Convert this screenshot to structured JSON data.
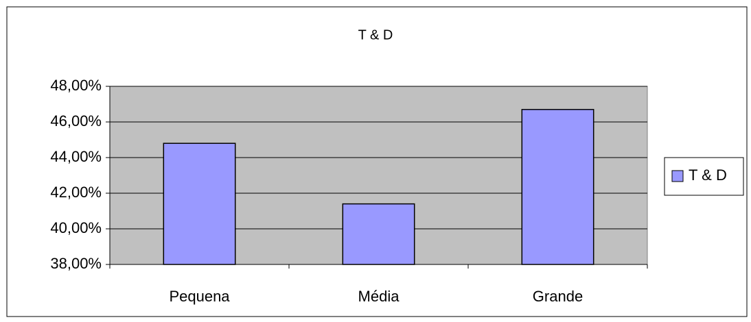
{
  "chart_data": {
    "type": "bar",
    "title": "T & D",
    "categories": [
      "Pequena",
      "Média",
      "Grande"
    ],
    "series": [
      {
        "name": "T & D",
        "color": "#9999ff",
        "values": [
          44.8,
          41.4,
          46.7
        ]
      }
    ],
    "ylim": [
      38,
      48
    ],
    "yticks": [
      {
        "value": 38,
        "label": "38,00%"
      },
      {
        "value": 40,
        "label": "40,00%"
      },
      {
        "value": 42,
        "label": "42,00%"
      },
      {
        "value": 44,
        "label": "44,00%"
      },
      {
        "value": 46,
        "label": "46,00%"
      },
      {
        "value": 48,
        "label": "48,00%"
      }
    ],
    "grid": true,
    "legend": "right"
  }
}
